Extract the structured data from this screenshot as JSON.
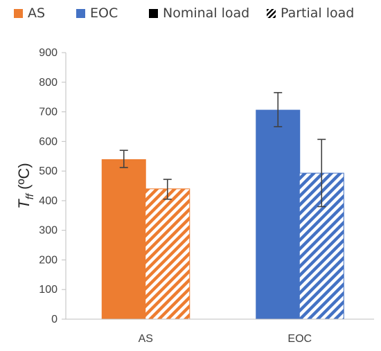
{
  "legend": [
    {
      "label": "AS",
      "color": "#ED7D31",
      "style": "solid",
      "icon": "solid-square-icon"
    },
    {
      "label": "EOC",
      "color": "#4472C4",
      "style": "solid",
      "icon": "solid-square-icon"
    },
    {
      "label": "Nominal load",
      "color": "#000000",
      "style": "solid",
      "icon": "solid-square-icon"
    },
    {
      "label": "Partial load",
      "color": "#000000",
      "style": "hatched",
      "icon": "hatched-square-icon"
    }
  ],
  "chart_data": {
    "type": "bar",
    "categories": [
      "AS",
      "EOC"
    ],
    "ylabel_main": "T",
    "ylabel_sub": "ff",
    "ylabel_rest": " (ºC)",
    "ylim": [
      0,
      900
    ],
    "yticks": [
      0,
      100,
      200,
      300,
      400,
      500,
      600,
      700,
      800,
      900
    ],
    "grid": false,
    "legend_position": "top",
    "colors": {
      "AS": "#ED7D31",
      "EOC": "#4472C4"
    },
    "series": [
      {
        "name": "Nominal load",
        "pattern": "solid",
        "values": [
          540,
          707
        ],
        "err_low": [
          512,
          650
        ],
        "err_high": [
          570,
          765
        ]
      },
      {
        "name": "Partial load",
        "pattern": "hatched",
        "values": [
          440,
          493
        ],
        "err_low": [
          405,
          380
        ],
        "err_high": [
          472,
          607
        ]
      }
    ]
  }
}
